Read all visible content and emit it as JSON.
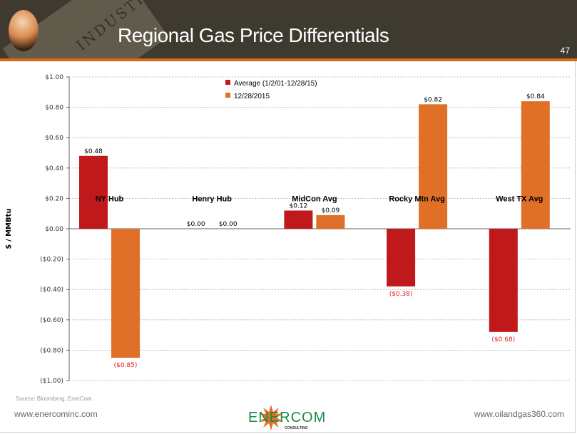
{
  "header": {
    "title": "Regional Gas Price Differentials",
    "page_number": "47",
    "background_word": "INDUSTRY"
  },
  "chart_data": {
    "type": "bar",
    "categories": [
      "NY Hub",
      "Henry Hub",
      "MidCon Avg",
      "Rocky Mtn Avg",
      "West TX Avg"
    ],
    "series": [
      {
        "name": "Average (1/2/01-12/28/15)",
        "color": "#c0191c",
        "values": [
          0.48,
          0.0,
          0.12,
          -0.38,
          -0.68
        ],
        "labels": [
          "$0.48",
          "$0.00",
          "$0.12",
          "($0.38)",
          "($0.68)"
        ]
      },
      {
        "name": "12/28/2015",
        "color": "#e07028",
        "values": [
          -0.85,
          0.0,
          0.09,
          0.82,
          0.84
        ],
        "labels": [
          "($0.85)",
          "$0.00",
          "$0.09",
          "$0.82",
          "$0.84"
        ]
      }
    ],
    "ylabel": "$ / MMBtu",
    "ylim": [
      -1.0,
      1.0
    ],
    "yticks": [
      1.0,
      0.8,
      0.6,
      0.4,
      0.2,
      0.0,
      -0.2,
      -0.4,
      -0.6,
      -0.8,
      -1.0
    ],
    "ytick_labels": [
      "$1.00",
      "$0.80",
      "$0.60",
      "$0.40",
      "$0.20",
      "$0.00",
      "($0.20)",
      "($0.40)",
      "($0.60)",
      "($0.80)",
      "($1.00)"
    ],
    "grid": "horizontal dashed",
    "legend": "top-center",
    "negative_label_color": "#e02020"
  },
  "footer": {
    "source": "Source: Bloomberg, EnerCom.",
    "left_url": "www.enercominc.com",
    "right_url": "www.oilandgas360.com",
    "logo_text": "ENERCOM",
    "logo_sub": "CONSULTING"
  }
}
